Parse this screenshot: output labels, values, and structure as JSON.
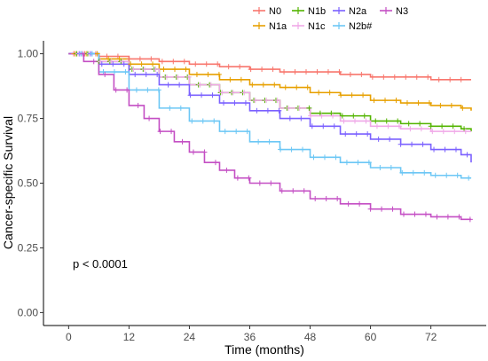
{
  "chart_data": {
    "type": "line",
    "subtype": "kaplan-meier step",
    "xlabel": "Time (months)",
    "ylabel": "Cancer-specific Survival",
    "xlim": [
      -5,
      83
    ],
    "ylim": [
      -0.05,
      1.05
    ],
    "xticks": [
      0,
      12,
      24,
      36,
      48,
      60,
      72
    ],
    "yticks": [
      0.0,
      0.25,
      0.5,
      0.75,
      1.0
    ],
    "ytick_labels": [
      "0.00",
      "0.25",
      "0.50",
      "0.75",
      "1.00"
    ],
    "grid": false,
    "legend_position": "top",
    "annotation": "p < 0.0001",
    "series": [
      {
        "name": "N0",
        "color": "#F8766D",
        "x": [
          0,
          6,
          12,
          18,
          24,
          30,
          36,
          42,
          48,
          54,
          60,
          66,
          72,
          78,
          80
        ],
        "y": [
          1.0,
          0.99,
          0.98,
          0.97,
          0.96,
          0.95,
          0.94,
          0.93,
          0.93,
          0.92,
          0.91,
          0.91,
          0.9,
          0.9,
          0.9
        ]
      },
      {
        "name": "N1a",
        "color": "#E7A000",
        "x": [
          0,
          6,
          12,
          18,
          24,
          30,
          36,
          42,
          48,
          54,
          60,
          66,
          72,
          78,
          80
        ],
        "y": [
          1.0,
          0.98,
          0.96,
          0.94,
          0.92,
          0.9,
          0.88,
          0.87,
          0.85,
          0.84,
          0.82,
          0.81,
          0.8,
          0.79,
          0.78
        ]
      },
      {
        "name": "N1b",
        "color": "#53B400",
        "x": [
          0,
          6,
          12,
          18,
          24,
          30,
          36,
          42,
          48,
          54,
          60,
          66,
          72,
          78,
          80
        ],
        "y": [
          1.0,
          0.97,
          0.94,
          0.91,
          0.88,
          0.85,
          0.82,
          0.79,
          0.77,
          0.76,
          0.74,
          0.73,
          0.72,
          0.71,
          0.7
        ]
      },
      {
        "name": "N1c",
        "color": "#F0A8E8",
        "x": [
          0,
          6,
          12,
          18,
          24,
          30,
          36,
          42,
          48,
          54,
          60,
          66,
          72,
          78,
          80
        ],
        "y": [
          1.0,
          0.97,
          0.94,
          0.91,
          0.88,
          0.85,
          0.82,
          0.79,
          0.76,
          0.74,
          0.72,
          0.71,
          0.7,
          0.7,
          0.7
        ]
      },
      {
        "name": "N2a",
        "color": "#7B61FF",
        "x": [
          0,
          6,
          12,
          18,
          24,
          30,
          36,
          42,
          48,
          54,
          60,
          66,
          72,
          78,
          80
        ],
        "y": [
          1.0,
          0.96,
          0.92,
          0.88,
          0.84,
          0.81,
          0.78,
          0.75,
          0.72,
          0.69,
          0.67,
          0.65,
          0.63,
          0.61,
          0.58
        ]
      },
      {
        "name": "N2b#",
        "color": "#6CC7F5",
        "x": [
          0,
          6,
          12,
          18,
          24,
          30,
          36,
          42,
          48,
          54,
          60,
          66,
          72,
          78,
          80
        ],
        "y": [
          1.0,
          0.93,
          0.86,
          0.79,
          0.74,
          0.7,
          0.66,
          0.63,
          0.6,
          0.58,
          0.56,
          0.54,
          0.53,
          0.52,
          0.52
        ]
      },
      {
        "name": "N3",
        "color": "#C44FC4",
        "x": [
          0,
          3,
          6,
          9,
          12,
          15,
          18,
          21,
          24,
          27,
          30,
          33,
          36,
          42,
          48,
          54,
          60,
          66,
          72,
          78,
          80
        ],
        "y": [
          1.0,
          0.97,
          0.92,
          0.86,
          0.8,
          0.75,
          0.7,
          0.66,
          0.62,
          0.58,
          0.55,
          0.52,
          0.5,
          0.47,
          0.44,
          0.42,
          0.4,
          0.38,
          0.37,
          0.36,
          0.36
        ]
      }
    ]
  }
}
